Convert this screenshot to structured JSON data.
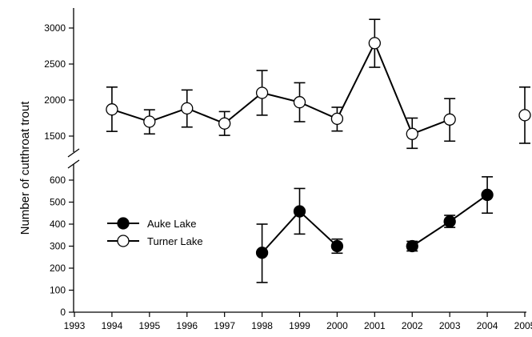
{
  "chart_data": {
    "type": "line",
    "title": "",
    "xlabel": "",
    "ylabel": "Number of cutthroat trout",
    "x_ticks": [
      "1993",
      "1994",
      "1995",
      "1996",
      "1997",
      "1998",
      "1999",
      "2000",
      "2001",
      "2002",
      "2003",
      "2004",
      "2005"
    ],
    "xlim": [
      1993,
      2005
    ],
    "broken_y_axis": true,
    "y_segments": [
      {
        "range": [
          1500,
          3000
        ],
        "ticks": [
          "1500",
          "2000",
          "2500",
          "3000"
        ]
      },
      {
        "range": [
          0,
          600
        ],
        "ticks": [
          "0",
          "100",
          "200",
          "300",
          "400",
          "500",
          "600"
        ]
      }
    ],
    "grid": false,
    "legend_position": "center-left",
    "series": [
      {
        "name": "Auke Lake",
        "marker": "filled-circle",
        "color": "#000000",
        "segment": "lower",
        "runs": [
          [
            {
              "x": 1998,
              "y": 270,
              "low": 135,
              "high": 400
            },
            {
              "x": 1999,
              "y": 458,
              "low": 355,
              "high": 562
            },
            {
              "x": 2000,
              "y": 300,
              "low": 268,
              "high": 332
            }
          ],
          [
            {
              "x": 2002,
              "y": 300,
              "low": 278,
              "high": 322
            },
            {
              "x": 2003,
              "y": 412,
              "low": 385,
              "high": 440
            },
            {
              "x": 2004,
              "y": 533,
              "low": 450,
              "high": 615
            }
          ]
        ]
      },
      {
        "name": "Turner Lake",
        "marker": "open-circle",
        "color": "#000000",
        "segment": "upper",
        "runs": [
          [
            {
              "x": 1994,
              "y": 1870,
              "low": 1565,
              "high": 2180
            },
            {
              "x": 1995,
              "y": 1700,
              "low": 1530,
              "high": 1865
            },
            {
              "x": 1996,
              "y": 1885,
              "low": 1625,
              "high": 2140
            },
            {
              "x": 1997,
              "y": 1675,
              "low": 1510,
              "high": 1840
            },
            {
              "x": 1998,
              "y": 2100,
              "low": 1790,
              "high": 2410
            },
            {
              "x": 1999,
              "y": 1970,
              "low": 1700,
              "high": 2240
            },
            {
              "x": 2000,
              "y": 1740,
              "low": 1570,
              "high": 1900
            },
            {
              "x": 2001,
              "y": 2790,
              "low": 2455,
              "high": 3120
            },
            {
              "x": 2002,
              "y": 1530,
              "low": 1330,
              "high": 1750
            },
            {
              "x": 2003,
              "y": 1730,
              "low": 1430,
              "high": 2020
            }
          ],
          [
            {
              "x": 2005,
              "y": 1790,
              "low": 1400,
              "high": 2180
            }
          ]
        ]
      }
    ]
  }
}
